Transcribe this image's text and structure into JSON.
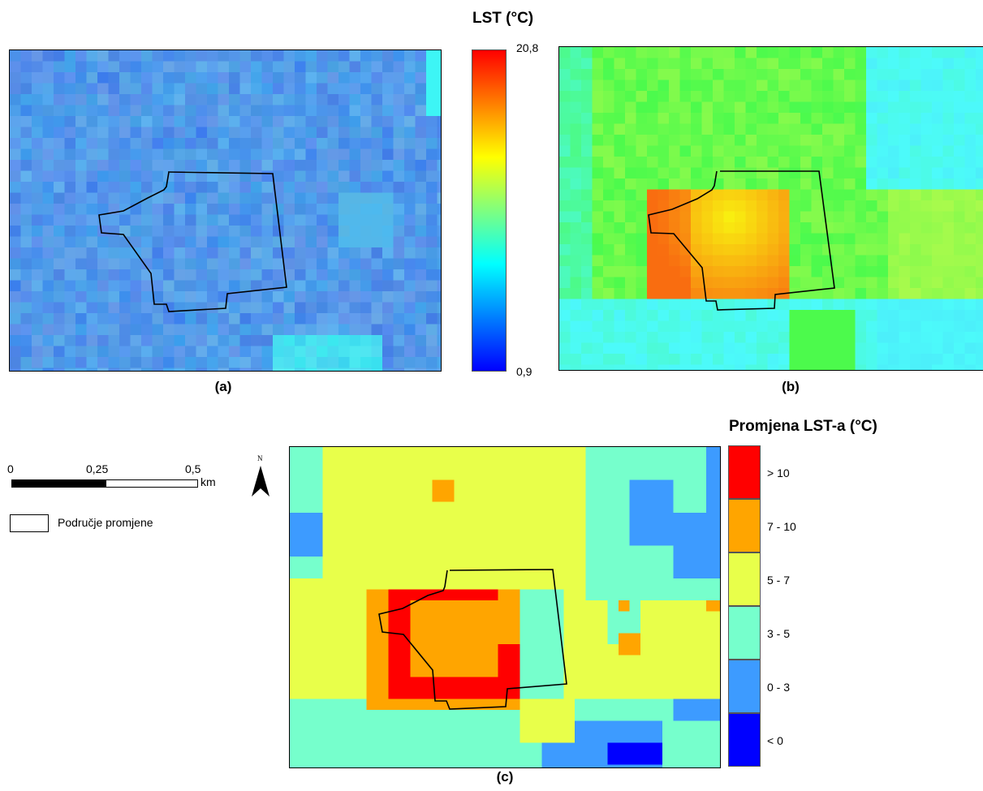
{
  "maps": {
    "a": {
      "caption": "(a)"
    },
    "b": {
      "caption": "(b)"
    },
    "c": {
      "caption": "(c)"
    }
  },
  "lst_legend": {
    "title": "LST (°C)",
    "max_label": "20,8",
    "min_label": "0,9",
    "colors": [
      "#ff0000",
      "#ff7f00",
      "#ffff00",
      "#7fff7f",
      "#00ffff",
      "#007fff",
      "#0000ff"
    ]
  },
  "change_legend": {
    "title": "Promjena LST-a (°C)",
    "classes": [
      {
        "label": "> 10",
        "color": "#ff0000"
      },
      {
        "label": "7 - 10",
        "color": "#ffa500"
      },
      {
        "label": "5 - 7",
        "color": "#e8ff4a"
      },
      {
        "label": "3 - 5",
        "color": "#76ffcc"
      },
      {
        "label": "0 - 3",
        "color": "#3d9bff"
      },
      {
        "label": "< 0",
        "color": "#0000ff"
      }
    ]
  },
  "scale_bar": {
    "ticks": [
      "0",
      "0,25",
      "0,5"
    ],
    "unit": "km"
  },
  "north_arrow": {
    "label": "N"
  },
  "boundary_legend": {
    "label": "Područje promjene"
  }
}
